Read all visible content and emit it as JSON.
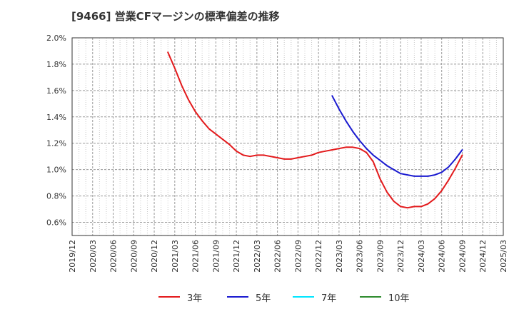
{
  "chart_data": {
    "type": "line",
    "title": "[9466]  営業CFマージンの標準偏差の推移",
    "xlabel": "",
    "ylabel": "",
    "ylim": [
      0.5,
      2.0
    ],
    "yticks": [
      "0.6%",
      "0.8%",
      "1.0%",
      "1.2%",
      "1.4%",
      "1.6%",
      "1.8%",
      "2.0%"
    ],
    "ytick_values": [
      0.6,
      0.8,
      1.0,
      1.2,
      1.4,
      1.6,
      1.8,
      2.0
    ],
    "xticks": [
      "2019/12",
      "2020/03",
      "2020/06",
      "2020/09",
      "2020/12",
      "2021/03",
      "2021/06",
      "2021/09",
      "2021/12",
      "2022/03",
      "2022/06",
      "2022/09",
      "2022/12",
      "2023/03",
      "2023/06",
      "2023/09",
      "2023/12",
      "2024/03",
      "2024/06",
      "2024/09",
      "2024/12",
      "2025/03"
    ],
    "grid": true,
    "legend_position": "bottom",
    "series": [
      {
        "name": "3年",
        "color": "#e31a1c",
        "x": [
          "2021/02",
          "2021/03",
          "2021/04",
          "2021/05",
          "2021/06",
          "2021/07",
          "2021/08",
          "2021/09",
          "2021/10",
          "2021/11",
          "2021/12",
          "2022/01",
          "2022/02",
          "2022/03",
          "2022/04",
          "2022/05",
          "2022/06",
          "2022/07",
          "2022/08",
          "2022/09",
          "2022/10",
          "2022/11",
          "2022/12",
          "2023/01",
          "2023/02",
          "2023/03",
          "2023/04",
          "2023/05",
          "2023/06",
          "2023/07",
          "2023/08",
          "2023/09",
          "2023/10",
          "2023/11",
          "2023/12",
          "2024/01",
          "2024/02",
          "2024/03",
          "2024/04",
          "2024/05",
          "2024/06",
          "2024/07",
          "2024/08",
          "2024/09"
        ],
        "y": [
          1.89,
          1.77,
          1.64,
          1.53,
          1.44,
          1.37,
          1.31,
          1.27,
          1.23,
          1.19,
          1.14,
          1.11,
          1.1,
          1.11,
          1.11,
          1.1,
          1.09,
          1.08,
          1.08,
          1.09,
          1.1,
          1.11,
          1.13,
          1.14,
          1.15,
          1.16,
          1.17,
          1.17,
          1.16,
          1.13,
          1.06,
          0.93,
          0.83,
          0.76,
          0.72,
          0.71,
          0.72,
          0.72,
          0.74,
          0.78,
          0.84,
          0.92,
          1.01,
          1.11
        ]
      },
      {
        "name": "5年",
        "color": "#1a1ad0",
        "x": [
          "2023/02",
          "2023/03",
          "2023/04",
          "2023/05",
          "2023/06",
          "2023/07",
          "2023/08",
          "2023/09",
          "2023/10",
          "2023/11",
          "2023/12",
          "2024/01",
          "2024/02",
          "2024/03",
          "2024/04",
          "2024/05",
          "2024/06",
          "2024/07",
          "2024/08",
          "2024/09"
        ],
        "y": [
          1.56,
          1.46,
          1.37,
          1.29,
          1.22,
          1.16,
          1.11,
          1.07,
          1.03,
          1.0,
          0.97,
          0.96,
          0.95,
          0.95,
          0.95,
          0.96,
          0.98,
          1.02,
          1.08,
          1.15
        ]
      },
      {
        "name": "7年",
        "color": "#00e5ff",
        "x": [],
        "y": []
      },
      {
        "name": "10年",
        "color": "#2e8b2e",
        "x": [],
        "y": []
      }
    ]
  }
}
